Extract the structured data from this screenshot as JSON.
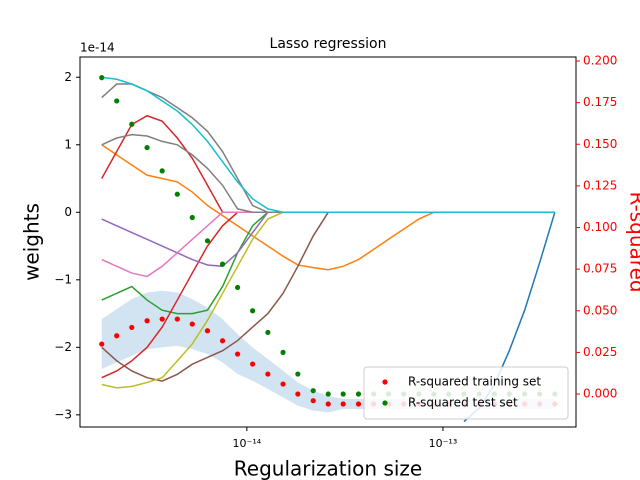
{
  "chart_data": {
    "type": "line",
    "title": "Lasso regression",
    "xlabel": "Regularization size",
    "ylabel": "weights",
    "y2label": "R-squared",
    "y_offset_label": "1e-14",
    "xscale": "log",
    "xlim": [
      1.41e-15,
      4.77e-13
    ],
    "xticks": [
      {
        "value": 1e-14,
        "label": "10⁻¹⁴"
      },
      {
        "value": 1e-13,
        "label": "10⁻¹³"
      }
    ],
    "ylim": [
      -3.18,
      2.3
    ],
    "yticks": [
      {
        "value": -3,
        "label": "−3"
      },
      {
        "value": -2,
        "label": "−2"
      },
      {
        "value": -1,
        "label": "−1"
      },
      0,
      1,
      2
    ],
    "y2lim": [
      -0.0198,
      0.2024
    ],
    "y2ticks": [
      {
        "value": 0,
        "label": "0.000"
      },
      {
        "value": 0.025,
        "label": "0.025"
      },
      {
        "value": 0.05,
        "label": "0.050"
      },
      {
        "value": 0.075,
        "label": "0.075"
      },
      {
        "value": 0.1,
        "label": "0.100"
      },
      {
        "value": 0.125,
        "label": "0.125"
      },
      {
        "value": 0.15,
        "label": "0.150"
      },
      {
        "value": 0.175,
        "label": "0.175"
      },
      {
        "value": 0.2,
        "label": "0.200"
      }
    ],
    "y2color": "#ff0000",
    "legend": "lower right",
    "x": [
      1.82e-15,
      2.17e-15,
      2.59e-15,
      3.1e-15,
      3.7e-15,
      4.42e-15,
      5.27e-15,
      6.3e-15,
      7.52e-15,
      8.97e-15,
      1.07e-14,
      1.28e-14,
      1.53e-14,
      1.82e-14,
      2.18e-14,
      2.6e-14,
      3.1e-14,
      3.71e-14,
      4.43e-14,
      5.28e-14,
      6.31e-14,
      7.53e-14,
      8.99e-14,
      1.07e-13,
      1.28e-13,
      1.53e-13,
      1.83e-13,
      2.18e-13,
      2.61e-13,
      3.11e-13,
      3.72e-13
    ],
    "band": {
      "color": "#a6c8e4",
      "axis": "y2",
      "lower": [
        0.015,
        0.019,
        0.023,
        0.027,
        0.028,
        0.029,
        0.027,
        0.024,
        0.019,
        0.012,
        0.008,
        0.003,
        -0.002,
        -0.007,
        -0.01,
        -0.011,
        -0.009,
        -0.009,
        -0.009,
        -0.009,
        -0.009,
        -0.009,
        -0.009,
        -0.009,
        -0.009,
        -0.009,
        -0.009,
        -0.009,
        -0.009,
        -0.009,
        -0.009
      ],
      "upper": [
        0.045,
        0.051,
        0.057,
        0.061,
        0.062,
        0.061,
        0.057,
        0.052,
        0.045,
        0.036,
        0.028,
        0.021,
        0.014,
        0.007,
        0.002,
        -0.001,
        -0.003,
        -0.003,
        -0.003,
        -0.003,
        -0.003,
        -0.003,
        -0.003,
        -0.003,
        -0.003,
        -0.003,
        -0.003,
        -0.003,
        -0.003,
        -0.003,
        -0.003
      ]
    },
    "series": [
      {
        "color": "#1f77b4",
        "values": [
          null,
          null,
          null,
          null,
          null,
          null,
          null,
          null,
          null,
          null,
          null,
          null,
          null,
          null,
          null,
          null,
          null,
          null,
          null,
          null,
          null,
          null,
          null,
          null,
          -3.1,
          -2.9,
          -2.55,
          -2.05,
          -1.45,
          -0.75,
          0
        ]
      },
      {
        "color": "#ff7f0e",
        "values": [
          1.0,
          0.85,
          0.7,
          0.55,
          0.5,
          0.45,
          0.3,
          0.1,
          -0.05,
          -0.2,
          -0.35,
          -0.5,
          -0.65,
          -0.78,
          -0.82,
          -0.85,
          -0.8,
          -0.7,
          -0.55,
          -0.4,
          -0.25,
          -0.1,
          0,
          0,
          0,
          0,
          0,
          0,
          0,
          0,
          0
        ]
      },
      {
        "color": "#2ca02c",
        "values": [
          -1.3,
          -1.2,
          -1.1,
          -1.3,
          -1.45,
          -1.5,
          -1.5,
          -1.45,
          -1.1,
          -0.6,
          -0.2,
          0,
          0,
          0,
          0,
          0,
          0,
          0,
          0,
          0,
          0,
          0,
          0,
          0,
          0,
          0,
          0,
          0,
          0,
          0,
          0
        ]
      },
      {
        "color": "#d62728",
        "values": [
          0.5,
          0.9,
          1.3,
          1.43,
          1.35,
          1.1,
          0.8,
          0.4,
          0,
          0,
          0,
          0,
          0,
          0,
          0,
          0,
          0,
          0,
          0,
          0,
          0,
          0,
          0,
          0,
          0,
          0,
          0,
          0,
          0,
          0,
          0
        ]
      },
      {
        "color": "#d62728",
        "values": [
          -2.45,
          -2.35,
          -2.2,
          -2.0,
          -1.7,
          -1.3,
          -0.9,
          -0.5,
          -0.2,
          0,
          0,
          0,
          0,
          0,
          0,
          0,
          0,
          0,
          0,
          0,
          0,
          0,
          0,
          0,
          0,
          0,
          0,
          0,
          0,
          0,
          0
        ]
      },
      {
        "color": "#9467bd",
        "values": [
          -0.1,
          -0.2,
          -0.3,
          -0.4,
          -0.5,
          -0.6,
          -0.7,
          -0.78,
          -0.8,
          -0.6,
          -0.3,
          0,
          0,
          0,
          0,
          0,
          0,
          0,
          0,
          0,
          0,
          0,
          0,
          0,
          0,
          0,
          0,
          0,
          0,
          0,
          0
        ]
      },
      {
        "color": "#8c564b",
        "values": [
          -2.0,
          -2.2,
          -2.35,
          -2.45,
          -2.5,
          -2.4,
          -2.25,
          -2.15,
          -2.05,
          -1.9,
          -1.7,
          -1.5,
          -1.2,
          -0.8,
          -0.35,
          0,
          0,
          0,
          0,
          0,
          0,
          0,
          0,
          0,
          0,
          0,
          0,
          0,
          0,
          0,
          0
        ]
      },
      {
        "color": "#e377c2",
        "values": [
          -0.7,
          -0.8,
          -0.9,
          -0.95,
          -0.8,
          -0.6,
          -0.4,
          -0.2,
          0,
          0,
          0,
          0,
          0,
          0,
          0,
          0,
          0,
          0,
          0,
          0,
          0,
          0,
          0,
          0,
          0,
          0,
          0,
          0,
          0,
          0,
          0
        ]
      },
      {
        "color": "#7f7f7f",
        "values": [
          1.0,
          1.1,
          1.15,
          1.13,
          1.05,
          1.0,
          0.85,
          0.65,
          0.4,
          0.05,
          0,
          0,
          0,
          0,
          0,
          0,
          0,
          0,
          0,
          0,
          0,
          0,
          0,
          0,
          0,
          0,
          0,
          0,
          0,
          0,
          0
        ]
      },
      {
        "color": "#7f7f7f",
        "values": [
          1.7,
          1.9,
          1.9,
          1.8,
          1.7,
          1.55,
          1.4,
          1.2,
          0.9,
          0.5,
          0.1,
          0,
          0,
          0,
          0,
          0,
          0,
          0,
          0,
          0,
          0,
          0,
          0,
          0,
          0,
          0,
          0,
          0,
          0,
          0,
          0
        ]
      },
      {
        "color": "#bcbd22",
        "values": [
          -2.55,
          -2.6,
          -2.58,
          -2.52,
          -2.45,
          -2.2,
          -1.95,
          -1.6,
          -1.2,
          -0.8,
          -0.4,
          -0.1,
          0,
          0,
          0,
          0,
          0,
          0,
          0,
          0,
          0,
          0,
          0,
          0,
          0,
          0,
          0,
          0,
          0,
          0,
          0
        ]
      },
      {
        "color": "#17becf",
        "values": [
          2.0,
          1.97,
          1.9,
          1.8,
          1.65,
          1.5,
          1.3,
          1.05,
          0.75,
          0.45,
          0.2,
          0.05,
          0,
          0,
          0,
          0,
          0,
          0,
          0,
          0,
          0,
          0,
          0,
          0,
          0,
          0,
          0,
          0,
          0,
          0,
          0
        ]
      },
      {
        "name": "R-squared training set",
        "color": "#ff0000",
        "axis": "y2",
        "marker": "dot",
        "values": [
          0.03,
          0.035,
          0.04,
          0.044,
          0.045,
          0.045,
          0.042,
          0.038,
          0.032,
          0.024,
          0.018,
          0.012,
          0.006,
          0.0,
          -0.004,
          -0.006,
          -0.006,
          -0.006,
          -0.006,
          -0.006,
          -0.006,
          -0.006,
          -0.006,
          -0.006,
          -0.006,
          -0.006,
          -0.006,
          -0.006,
          -0.006,
          -0.006,
          -0.006
        ]
      },
      {
        "name": "R-squared test set",
        "color": "#008000",
        "axis": "y2",
        "marker": "dot",
        "values": [
          0.19,
          0.176,
          0.162,
          0.148,
          0.134,
          0.12,
          0.106,
          0.092,
          0.078,
          0.064,
          0.05,
          0.037,
          0.025,
          0.012,
          0.002,
          0.0,
          0.0,
          0.0,
          0.0,
          0.0,
          0.0,
          0.0,
          0.0,
          0.0,
          0.0,
          0.0,
          0.0,
          0.0,
          0.0,
          0.0,
          0.0
        ]
      }
    ]
  }
}
